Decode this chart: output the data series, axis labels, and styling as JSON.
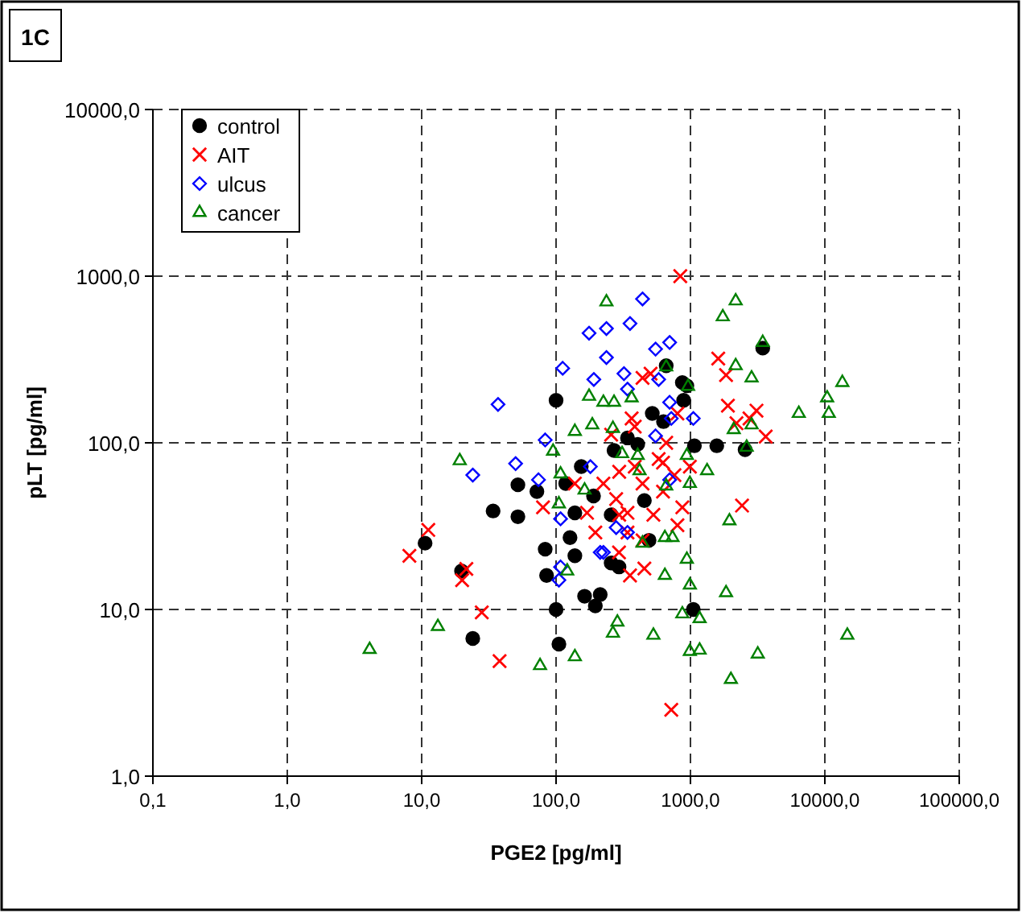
{
  "chart_data": {
    "type": "scatter",
    "title": "1C",
    "xlabel": "PGE2 [pg/ml]",
    "ylabel": "pLT [pg/ml]",
    "log": "xy",
    "grid": true,
    "legend": "top left",
    "xlim": [
      0.1,
      100000
    ],
    "ylim": [
      1,
      10000
    ],
    "xticks": [
      {
        "value": 0.1,
        "label": "0,1"
      },
      {
        "value": 1,
        "label": "1,0"
      },
      {
        "value": 10,
        "label": "10,0"
      },
      {
        "value": 100,
        "label": "100,0"
      },
      {
        "value": 1000,
        "label": "1000,0"
      },
      {
        "value": 10000,
        "label": "10000,0"
      },
      {
        "value": 100000,
        "label": "100000,0"
      }
    ],
    "yticks": [
      {
        "value": 1,
        "label": "1,0"
      },
      {
        "value": 10,
        "label": "10,0"
      },
      {
        "value": 100,
        "label": "100,0"
      },
      {
        "value": 1000,
        "label": "1000,0"
      },
      {
        "value": 10000,
        "label": "10000,0"
      }
    ],
    "series": [
      {
        "name": "control",
        "color": "#000000",
        "marker": "circle",
        "x": [
          10.6,
          19.8,
          24,
          34,
          52,
          52,
          83,
          85,
          100,
          105,
          100,
          127,
          72,
          118,
          138,
          163,
          196,
          213,
          257,
          294,
          454,
          492,
          1050,
          660,
          870,
          940,
          520,
          630,
          1070,
          1570,
          2550,
          3450,
          270,
          405,
          190,
          340,
          257,
          138,
          154,
          890
        ],
        "values": [
          25,
          17,
          6.7,
          39,
          36,
          56,
          23,
          16,
          10,
          6.2,
          180,
          27,
          51,
          57,
          38,
          12,
          10.5,
          12.3,
          19,
          18,
          45,
          26,
          10,
          290,
          230,
          220,
          150,
          134,
          96,
          96,
          91,
          370,
          90,
          98,
          48,
          107,
          37,
          21,
          72,
          180
        ]
      },
      {
        "name": "AIT",
        "color": "#ff0000",
        "marker": "cross",
        "x": [
          8.1,
          11.2,
          21.5,
          20,
          28,
          38,
          80,
          840,
          1610,
          1840,
          1900,
          2200,
          3100,
          3630,
          2750,
          2420,
          720,
          454,
          355,
          294,
          800,
          440,
          505,
          365,
          800,
          625,
          295,
          225,
          280,
          340,
          385,
          440,
          530,
          625,
          760,
          870,
          580,
          340,
          170,
          196,
          138,
          257,
          385,
          660,
          990,
          295,
          440
        ],
        "values": [
          21,
          30,
          17.5,
          15,
          9.6,
          4.9,
          41,
          1000,
          320,
          255,
          167,
          131,
          156,
          109,
          140,
          42,
          2.5,
          17.6,
          16,
          22,
          32,
          245,
          260,
          140,
          150,
          76,
          67,
          57,
          46,
          38,
          72,
          57,
          37,
          51,
          64,
          41,
          80,
          29,
          38,
          29,
          57,
          112,
          125,
          100,
          72,
          37,
          26
        ]
      },
      {
        "name": "ulcus",
        "color": "#0000ff",
        "marker": "diamond",
        "x": [
          37,
          112,
          176,
          191,
          24,
          50,
          74,
          83,
          440,
          355,
          237,
          237,
          700,
          550,
          320,
          580,
          340,
          700,
          1050,
          550,
          720,
          180,
          700,
          225,
          280,
          340,
          108,
          105,
          108,
          213
        ],
        "values": [
          170,
          280,
          455,
          240,
          64,
          75,
          60,
          104,
          730,
          520,
          485,
          325,
          400,
          365,
          260,
          240,
          210,
          175,
          140,
          110,
          140,
          72,
          60,
          22,
          31,
          29,
          18,
          15,
          35,
          22
        ]
      },
      {
        "name": "cancer",
        "color": "#008000",
        "marker": "triangle",
        "x": [
          4.1,
          13.2,
          76,
          138,
          19.2,
          108,
          186,
          176,
          138,
          95,
          237,
          2170,
          1740,
          3450,
          660,
          960,
          2170,
          2850,
          13500,
          10400,
          10700,
          6400,
          365,
          225,
          270,
          265,
          2100,
          2850,
          940,
          405,
          1330,
          2620,
          990,
          660,
          1950,
          940,
          645,
          990,
          1840,
          870,
          1170,
          286,
          265,
          530,
          990,
          1170,
          3170,
          2000,
          14700,
          645,
          440,
          735,
          105,
          163,
          121,
          310,
          418
        ],
        "values": [
          5.75,
          7.9,
          4.6,
          5.2,
          78,
          65,
          128,
          190,
          117,
          89,
          700,
          710,
          570,
          400,
          285,
          218,
          290,
          245,
          230,
          186,
          150,
          150,
          186,
          175,
          175,
          122,
          120,
          128,
          84,
          84,
          68,
          94,
          57,
          55,
          34,
          20,
          16,
          14,
          12.6,
          9.4,
          8.8,
          8.4,
          7.2,
          7.0,
          5.6,
          5.7,
          5.4,
          3.8,
          7.0,
          27,
          25,
          27,
          43,
          52,
          17,
          86,
          68
        ]
      }
    ]
  }
}
